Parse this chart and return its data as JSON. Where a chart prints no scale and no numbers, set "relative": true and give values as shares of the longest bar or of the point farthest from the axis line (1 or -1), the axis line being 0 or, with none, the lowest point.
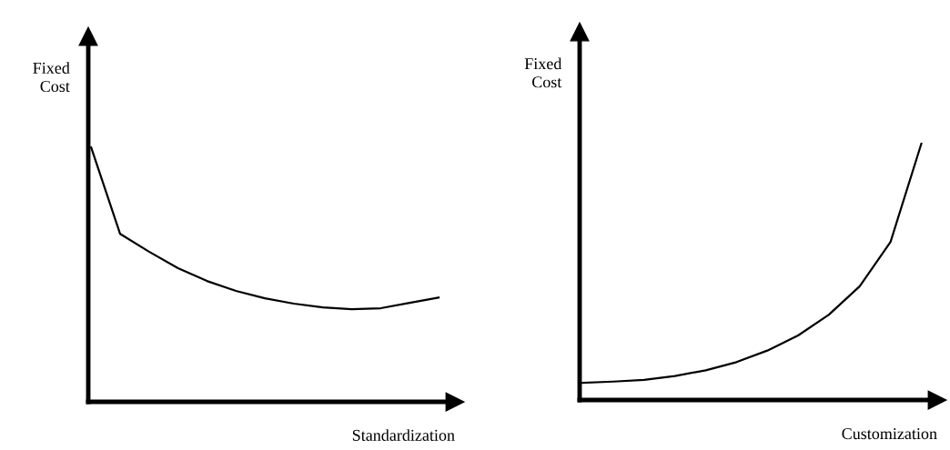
{
  "chart_data": [
    {
      "type": "line",
      "relative": true,
      "ylabel": "Fixed\nCost",
      "xlabel": "Standardization",
      "categories": [
        null,
        null,
        null,
        null,
        null,
        null,
        null,
        null,
        null,
        null,
        null,
        null,
        null
      ],
      "series": [
        {
          "color": "#000000",
          "values": [
            1.0,
            0.66,
            0.59,
            0.525,
            0.475,
            0.436,
            0.407,
            0.386,
            0.371,
            0.364,
            0.368,
            0.389,
            0.41
          ]
        }
      ],
      "grid": false,
      "legend": false,
      "marker": "none",
      "line_style": "solid"
    },
    {
      "type": "line",
      "relative": true,
      "ylabel": "Fixed\nCost",
      "xlabel": "Customization",
      "categories": [
        null,
        null,
        null,
        null,
        null,
        null,
        null,
        null,
        null,
        null,
        null,
        null
      ],
      "series": [
        {
          "color": "#000000",
          "values": [
            0.067,
            0.072,
            0.079,
            0.094,
            0.116,
            0.148,
            0.193,
            0.252,
            0.333,
            0.444,
            0.617,
            1.0
          ]
        }
      ],
      "grid": false,
      "legend": false,
      "marker": "none",
      "line_style": "solid"
    }
  ]
}
